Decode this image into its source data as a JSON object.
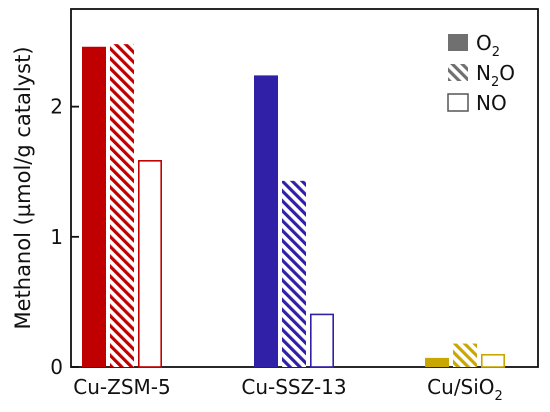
{
  "chart_data": {
    "type": "bar",
    "ylabel": "Methanol (µmol/g catalyst)",
    "ylim": [
      0,
      2.75
    ],
    "yticks": [
      "0",
      "1",
      "2"
    ],
    "categories": [
      {
        "label": "Cu-ZSM-5",
        "base": "Cu-ZSM-5",
        "sub": ""
      },
      {
        "label": "Cu-SSZ-13",
        "base": "Cu-SSZ-13",
        "sub": ""
      },
      {
        "label": "Cu/SiO2",
        "base": "Cu/SiO",
        "sub": "2"
      }
    ],
    "category_colors": [
      "#c00000",
      "#3020a8",
      "#c8a800"
    ],
    "series": [
      {
        "name": "O2",
        "name_base": "O",
        "name_sub": "2",
        "name_tail": "",
        "style": "solid",
        "values": [
          2.46,
          2.24,
          0.07
        ]
      },
      {
        "name": "N2O",
        "name_base": "N",
        "name_sub": "2",
        "name_tail": "O",
        "style": "hatched",
        "values": [
          2.48,
          1.43,
          0.18
        ]
      },
      {
        "name": "NO",
        "name_base": "NO",
        "name_sub": "",
        "name_tail": "",
        "style": "open",
        "values": [
          1.59,
          0.41,
          0.1
        ]
      }
    ],
    "legend": {
      "position": "top-right",
      "swatch_color": "#707070"
    },
    "grid": false
  }
}
